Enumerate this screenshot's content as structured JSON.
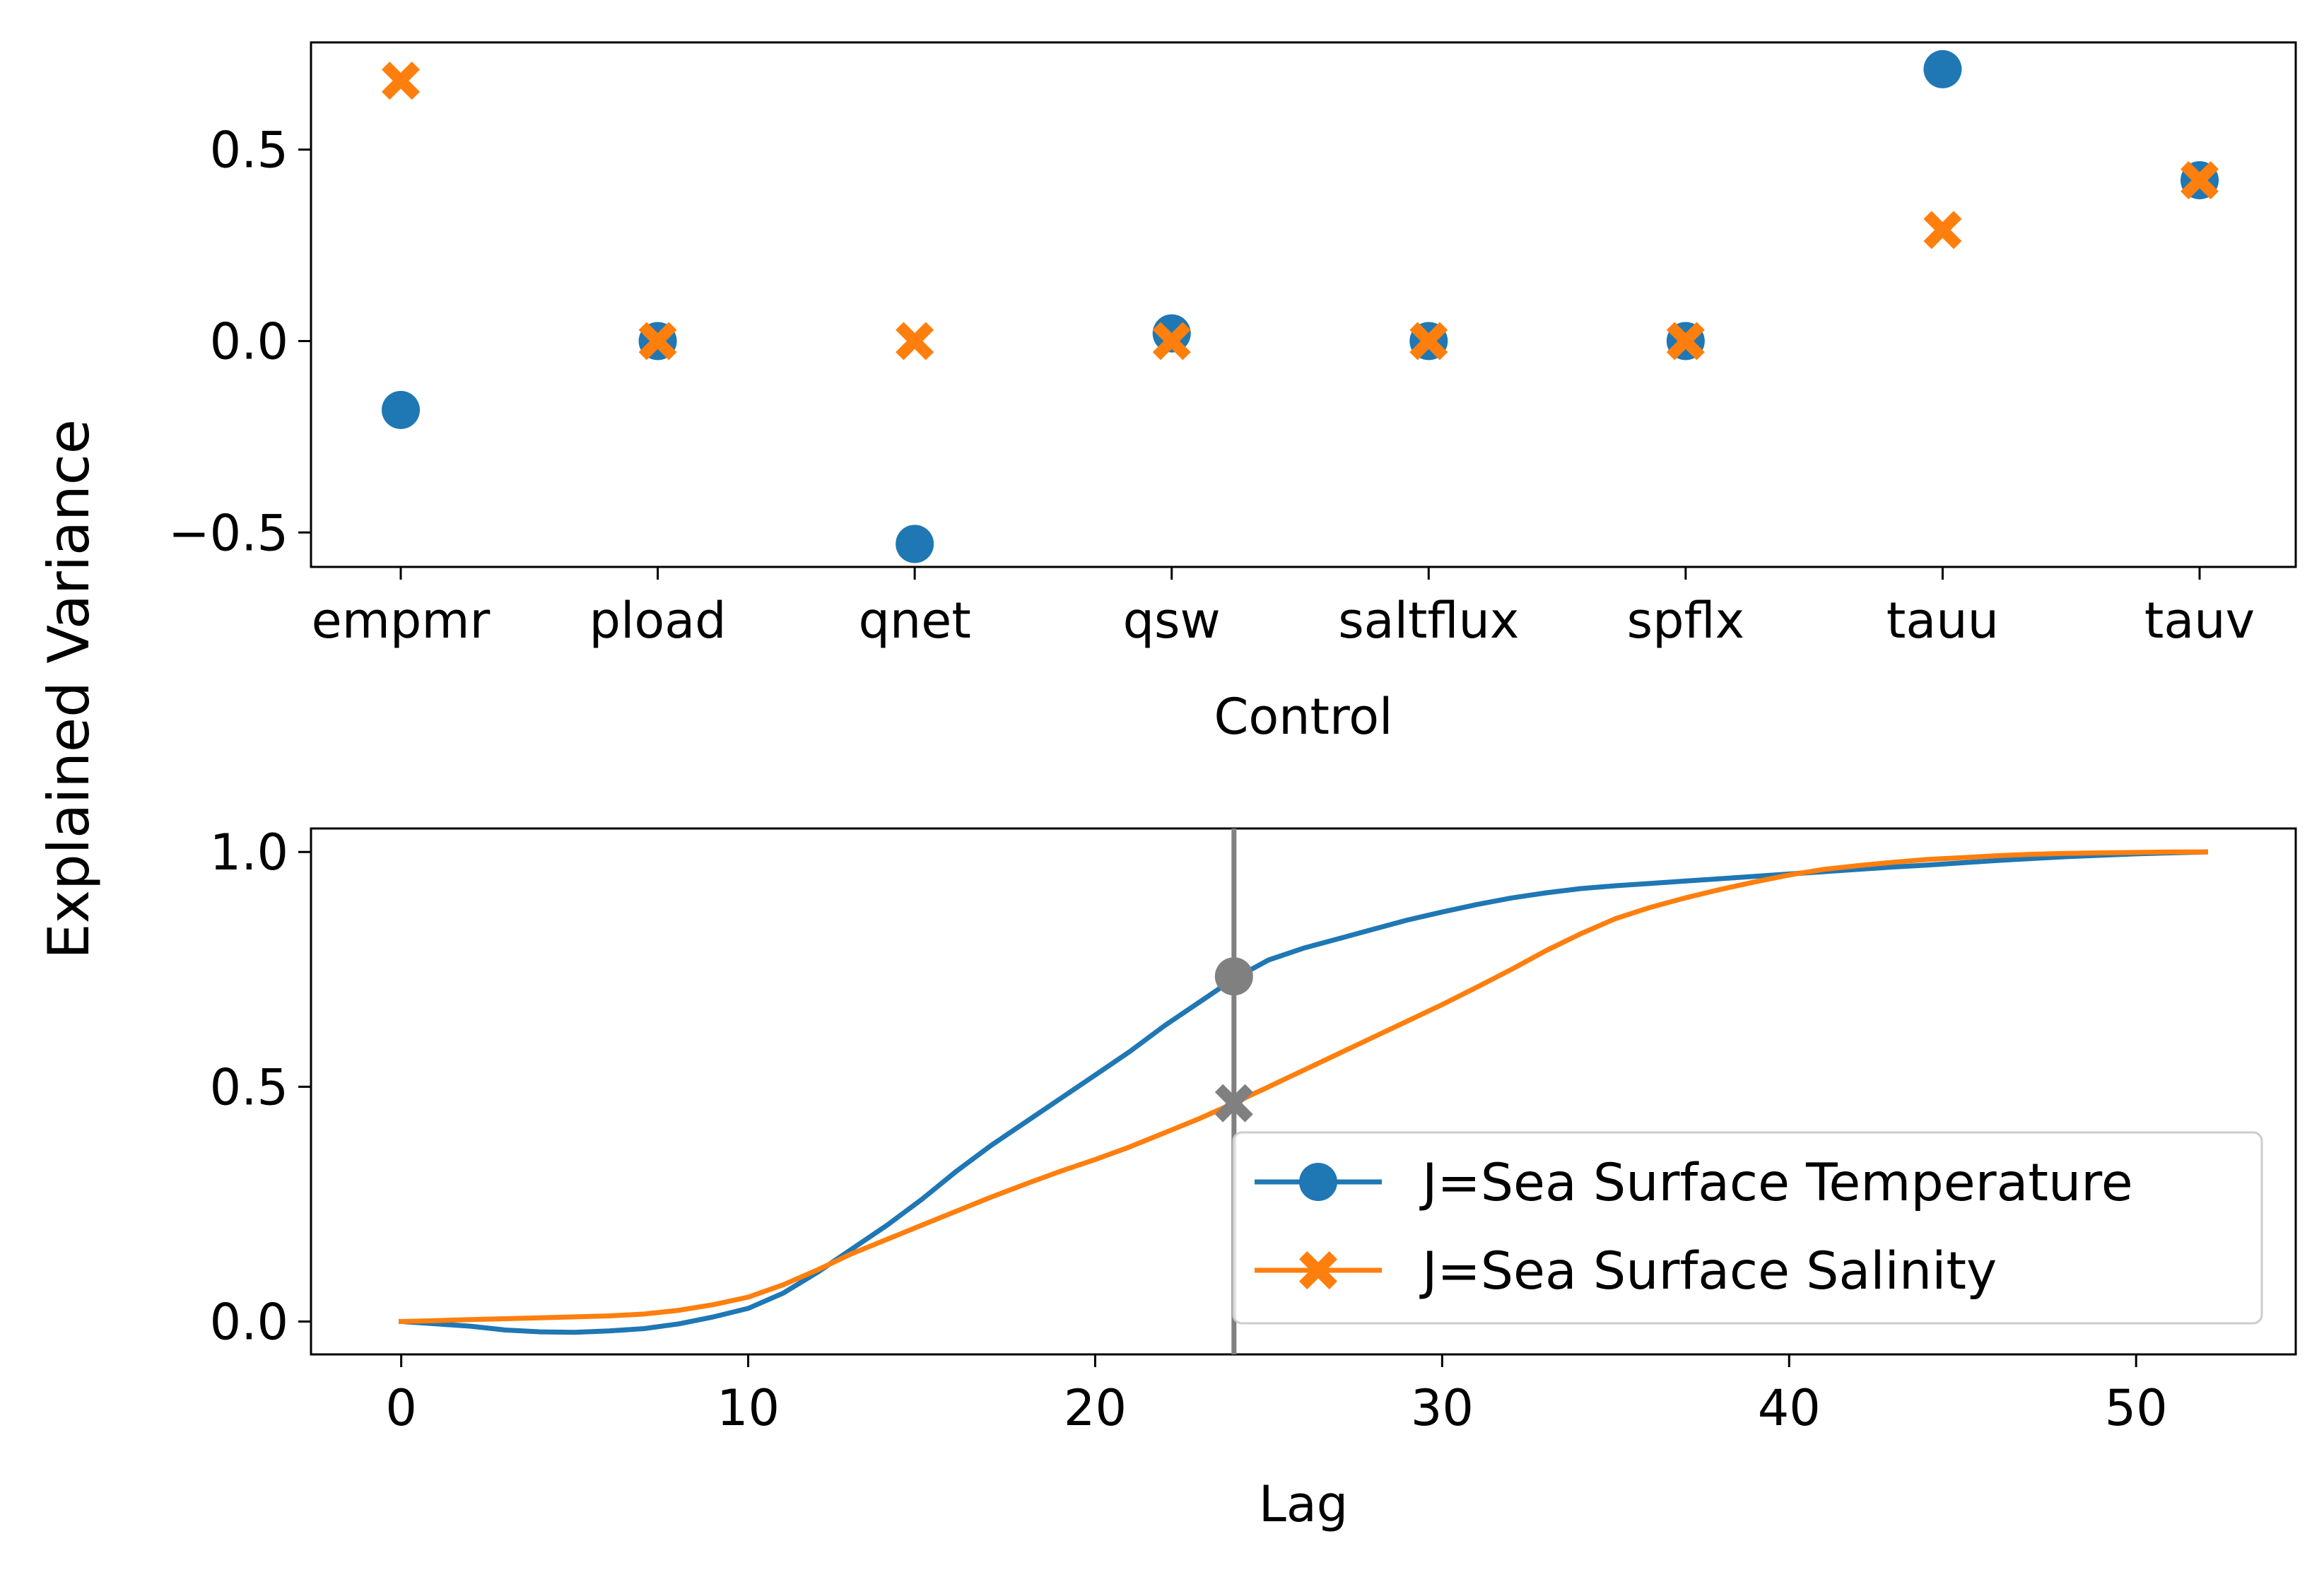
{
  "figure": {
    "ylabel": "Explained Variance"
  },
  "colors": {
    "series1": "#1f77b4",
    "series2": "#ff7f0e",
    "marker_line": "#808080",
    "axes": "#000000"
  },
  "chart_data": [
    {
      "type": "scatter",
      "xlabel": "Control",
      "ylabel": "Explained Variance",
      "categories": [
        "empmr",
        "pload",
        "qnet",
        "qsw",
        "saltflux",
        "spflx",
        "tauu",
        "tauv"
      ],
      "ylim": [
        -0.59,
        0.78
      ],
      "yticks": [
        -0.5,
        0.0,
        0.5
      ],
      "ytick_labels": [
        "−0.5",
        "0.0",
        "0.5"
      ],
      "series": [
        {
          "values": [
            -0.18,
            0.0,
            -0.53,
            0.02,
            0.0,
            0.0,
            0.71,
            0.42
          ],
          "marker": "circle",
          "color": "#1f77b4"
        },
        {
          "values": [
            0.68,
            0.0,
            0.0,
            0.0,
            0.0,
            0.0,
            0.29,
            0.42
          ],
          "marker": "x",
          "color": "#ff7f0e"
        }
      ],
      "grid": false
    },
    {
      "type": "line",
      "xlabel": "Lag",
      "ylabel": "Explained Variance",
      "xlim": [
        -2.6,
        54.6
      ],
      "ylim": [
        -0.07,
        1.05
      ],
      "xticks": [
        0,
        10,
        20,
        30,
        40,
        50
      ],
      "xtick_labels": [
        "0",
        "10",
        "20",
        "30",
        "40",
        "50"
      ],
      "yticks": [
        0.0,
        0.5,
        1.0
      ],
      "ytick_labels": [
        "0.0",
        "0.5",
        "1.0"
      ],
      "x": [
        0,
        1,
        2,
        3,
        4,
        5,
        6,
        7,
        8,
        9,
        10,
        11,
        12,
        13,
        14,
        15,
        16,
        17,
        18,
        19,
        20,
        21,
        22,
        23,
        24,
        25,
        26,
        27,
        28,
        29,
        30,
        31,
        32,
        33,
        34,
        35,
        36,
        37,
        38,
        39,
        40,
        41,
        42,
        43,
        44,
        45,
        46,
        47,
        48,
        49,
        50,
        51,
        52
      ],
      "series": [
        {
          "name": "J=Sea Surface Temperature",
          "color": "#1f77b4",
          "marker": "circle",
          "values": [
            0.0,
            -0.005,
            -0.01,
            -0.018,
            -0.022,
            -0.023,
            -0.02,
            -0.015,
            -0.005,
            0.01,
            0.028,
            0.06,
            0.105,
            0.155,
            0.205,
            0.26,
            0.32,
            0.375,
            0.425,
            0.475,
            0.525,
            0.575,
            0.63,
            0.68,
            0.73,
            0.77,
            0.795,
            0.815,
            0.835,
            0.855,
            0.872,
            0.888,
            0.902,
            0.913,
            0.922,
            0.928,
            0.933,
            0.938,
            0.943,
            0.948,
            0.953,
            0.958,
            0.963,
            0.968,
            0.972,
            0.977,
            0.982,
            0.986,
            0.99,
            0.993,
            0.996,
            0.998,
            1.0
          ]
        },
        {
          "name": "J=Sea Surface Salinity",
          "color": "#ff7f0e",
          "marker": "x",
          "values": [
            0.0,
            0.002,
            0.004,
            0.006,
            0.008,
            0.01,
            0.012,
            0.016,
            0.024,
            0.036,
            0.052,
            0.078,
            0.11,
            0.145,
            0.175,
            0.205,
            0.235,
            0.265,
            0.293,
            0.32,
            0.345,
            0.372,
            0.402,
            0.432,
            0.465,
            0.5,
            0.535,
            0.57,
            0.605,
            0.64,
            0.675,
            0.712,
            0.75,
            0.79,
            0.826,
            0.858,
            0.882,
            0.902,
            0.92,
            0.936,
            0.951,
            0.963,
            0.971,
            0.978,
            0.984,
            0.988,
            0.992,
            0.995,
            0.997,
            0.998,
            0.999,
            1.0,
            1.0
          ]
        }
      ],
      "vline": {
        "x": 24,
        "color": "#808080"
      },
      "highlight_points": [
        {
          "x": 24,
          "y": 0.735,
          "marker": "circle",
          "color": "#808080"
        },
        {
          "x": 24,
          "y": 0.465,
          "marker": "x",
          "color": "#808080"
        }
      ],
      "legend": {
        "placement": "lower-right"
      },
      "grid": false
    }
  ]
}
